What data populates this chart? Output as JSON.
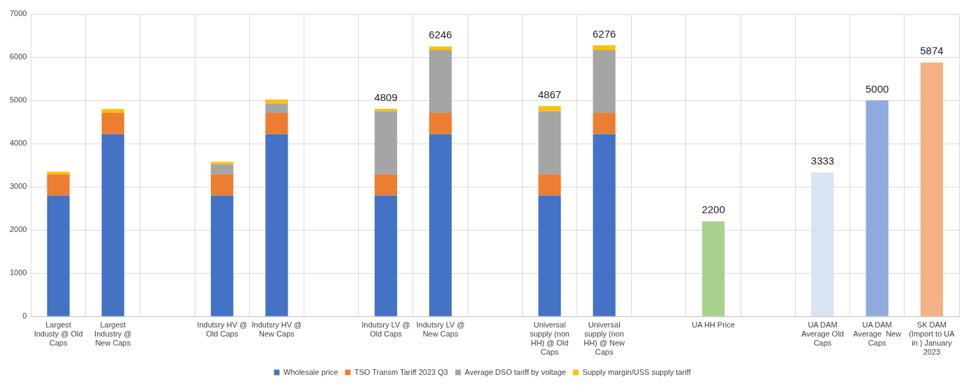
{
  "chart_data": {
    "type": "bar",
    "stacked": true,
    "categories": [
      "Largest Industy @ Old Caps",
      "Largest Industry @ New Caps",
      null,
      "Indutsry HV @ Old Caps",
      "Indutsry HV @ New Caps",
      null,
      "Indutsry LV @ Old Caps",
      "Indutsry LV @ New Caps",
      null,
      "Universal supply (non HH) @ Old Caps",
      "Universal supply (non HH) @ New Caps",
      null,
      "UA HH Price",
      null,
      "UA DAM Average Old Caps",
      "UA DAM Average  New Caps",
      "SK DAM (Import to UA in ) January 2023"
    ],
    "series": [
      {
        "name": "Wholesale price",
        "color": "#4472c4",
        "values": [
          2800,
          4220,
          null,
          2800,
          4220,
          null,
          2800,
          4220,
          null,
          2800,
          4220,
          null,
          null,
          null,
          null,
          null,
          null
        ]
      },
      {
        "name": "TSO Transm Tariff 2023 Q3",
        "color": "#ed7d31",
        "values": [
          490,
          490,
          null,
          490,
          490,
          null,
          490,
          490,
          null,
          490,
          490,
          null,
          null,
          null,
          null,
          null,
          null
        ]
      },
      {
        "name": "Average DSO tariff by voltage",
        "color": "#a5a5a5",
        "values": [
          null,
          null,
          null,
          230,
          220,
          null,
          1460,
          1450,
          null,
          1460,
          1450,
          null,
          null,
          null,
          null,
          null,
          null
        ]
      },
      {
        "name": "Supply margin/USS supply tariff",
        "color": "#ffc000",
        "values": [
          60,
          90,
          null,
          60,
          90,
          null,
          59,
          86,
          null,
          117,
          116,
          null,
          null,
          null,
          null,
          null,
          null
        ]
      },
      {
        "colors": [
          "#000000",
          "#000000",
          "#000000",
          "#000000",
          "#000000",
          "#000000",
          "#000000",
          "#000000",
          "#000000",
          "#000000",
          "#000000",
          "#000000",
          "#a9d18e",
          "#000000",
          "#dae3f3",
          "#8faadc",
          "#f4b183"
        ],
        "values": [
          null,
          null,
          null,
          null,
          null,
          null,
          null,
          null,
          null,
          null,
          null,
          null,
          2200,
          null,
          3333,
          5000,
          5874
        ],
        "value_labels": [
          null,
          null,
          null,
          null,
          null,
          null,
          null,
          null,
          null,
          null,
          null,
          null,
          "2200",
          null,
          "3333",
          "5000",
          "5874"
        ]
      }
    ],
    "totals": [
      null,
      null,
      null,
      null,
      null,
      null,
      "4809",
      "6246",
      null,
      "4867",
      "6276",
      null,
      null,
      null,
      null,
      null,
      null
    ],
    "ylim": [
      0,
      7000
    ],
    "yticks": [
      0,
      1000,
      2000,
      3000,
      4000,
      5000,
      6000,
      7000
    ],
    "grid": true,
    "legend": "bottom"
  }
}
